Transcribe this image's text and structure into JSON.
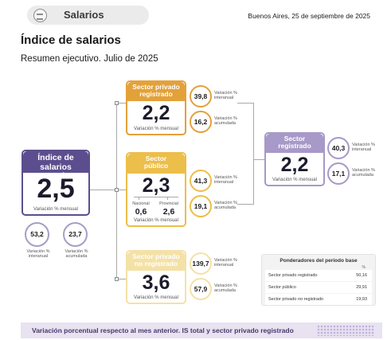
{
  "header": {
    "section": "Salarios",
    "section_icon": "salary-icon",
    "date": "Buenos Aires, 25 de septiembre de 2025"
  },
  "title": "Índice de salarios",
  "subtitle": "Resumen ejecutivo. Julio de 2025",
  "colors": {
    "total": "#5c4e8e",
    "privado_registrado": "#e3a13a",
    "publico": "#ecbe4a",
    "no_registrado": "#f4e1a6",
    "sector_registrado": "#a799c8"
  },
  "total": {
    "title": "Índice de salarios total",
    "value": "2,5",
    "caption": "Variación % mensual",
    "interanual": "53,2",
    "acumulada": "23,7",
    "interanual_label": "Variación % interanual",
    "acumulada_label": "Variación % acumulada"
  },
  "privado_registrado": {
    "title": "Sector privado registrado",
    "value": "2,2",
    "caption": "Variación % mensual",
    "interanual": "39,8",
    "acumulada": "16,2",
    "interanual_label": "Variación % interanual",
    "acumulada_label": "Variación % acumulada"
  },
  "publico": {
    "title": "Sector público",
    "value": "2,3",
    "nacional_label": "Nacional",
    "nacional_value": "0,6",
    "provincial_label": "Provincial",
    "provincial_value": "2,6",
    "caption": "Variación % mensual",
    "interanual": "41,3",
    "acumulada": "19,1",
    "interanual_label": "Variación % interanual",
    "acumulada_label": "Variación % acumulada"
  },
  "no_registrado": {
    "title": "Sector privado no registrado",
    "value": "3,6",
    "caption": "Variación % mensual",
    "interanual": "139,7",
    "acumulada": "57,9",
    "interanual_label": "Variación % interanual",
    "acumulada_label": "Variación % acumulada"
  },
  "sector_registrado": {
    "title": "Sector registrado",
    "value": "2,2",
    "caption": "Variación % mensual",
    "interanual": "40,3",
    "acumulada": "17,1",
    "interanual_label": "Variación % interanual",
    "acumulada_label": "Variación % acumulada"
  },
  "ponderadores": {
    "title": "Ponderadores del período base",
    "unit": "%",
    "rows": [
      {
        "label": "Sector privado registrado",
        "value": "50,16"
      },
      {
        "label": "Sector público",
        "value": "29,91"
      },
      {
        "label": "Sector privado no registrado",
        "value": "19,93"
      }
    ]
  },
  "footer": "Variación porcentual respecto al mes anterior. IS total y sector privado registrado"
}
